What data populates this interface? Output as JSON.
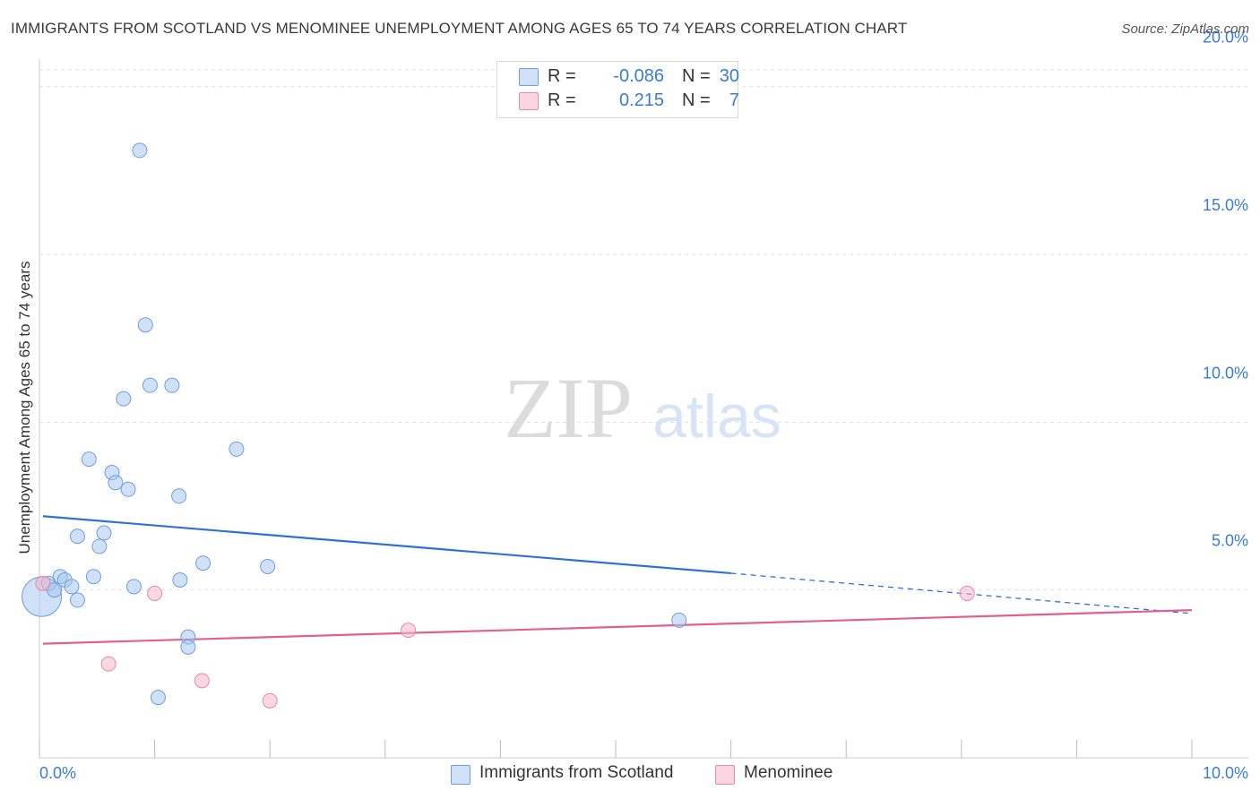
{
  "title": "IMMIGRANTS FROM SCOTLAND VS MENOMINEE UNEMPLOYMENT AMONG AGES 65 TO 74 YEARS CORRELATION CHART",
  "source": "Source: ZipAtlas.com",
  "watermark": {
    "zip": "ZIP",
    "atlas": "atlas"
  },
  "legend": [
    {
      "r_label": "R =",
      "r_value": "-0.086",
      "n_label": "N =",
      "n_value": "30",
      "color": "#a9c8f0"
    },
    {
      "r_label": "R =",
      "r_value": "0.215",
      "n_label": "N =",
      "n_value": "7",
      "color": "#f6b8cb"
    }
  ],
  "chart_data": {
    "type": "scatter",
    "title": "IMMIGRANTS FROM SCOTLAND VS MENOMINEE UNEMPLOYMENT AMONG AGES 65 TO 74 YEARS CORRELATION CHART",
    "xlabel": "",
    "ylabel": "Unemployment Among Ages 65 to 74 years",
    "xlim": [
      0,
      10
    ],
    "ylim": [
      0,
      20.5
    ],
    "x_tick_labels": [
      "0.0%",
      "10.0%"
    ],
    "y_ticks": [
      5,
      10,
      15,
      20
    ],
    "y_tick_labels": [
      "5.0%",
      "10.0%",
      "15.0%",
      "20.0%"
    ],
    "grid": true,
    "series": [
      {
        "name": "Immigrants from Scotland",
        "color": "#a9c8f0",
        "stroke": "#6a9fe0",
        "line_color": "#2f72d1",
        "points": [
          {
            "x": 0.02,
            "y": 4.8,
            "large": true
          },
          {
            "x": 0.08,
            "y": 5.2
          },
          {
            "x": 0.13,
            "y": 5.0
          },
          {
            "x": 0.18,
            "y": 5.4
          },
          {
            "x": 0.22,
            "y": 5.3
          },
          {
            "x": 0.28,
            "y": 5.1
          },
          {
            "x": 0.33,
            "y": 4.7
          },
          {
            "x": 0.47,
            "y": 5.4
          },
          {
            "x": 0.82,
            "y": 5.1
          },
          {
            "x": 1.22,
            "y": 5.3
          },
          {
            "x": 0.33,
            "y": 6.6
          },
          {
            "x": 0.52,
            "y": 6.3
          },
          {
            "x": 0.56,
            "y": 6.7
          },
          {
            "x": 1.42,
            "y": 5.8
          },
          {
            "x": 1.98,
            "y": 5.7
          },
          {
            "x": 0.43,
            "y": 8.9
          },
          {
            "x": 0.63,
            "y": 8.5
          },
          {
            "x": 0.66,
            "y": 8.2
          },
          {
            "x": 0.77,
            "y": 8.0
          },
          {
            "x": 1.21,
            "y": 7.8
          },
          {
            "x": 1.71,
            "y": 9.2
          },
          {
            "x": 0.73,
            "y": 10.7
          },
          {
            "x": 0.96,
            "y": 11.1
          },
          {
            "x": 1.15,
            "y": 11.1
          },
          {
            "x": 0.92,
            "y": 12.9
          },
          {
            "x": 0.87,
            "y": 18.1
          },
          {
            "x": 1.29,
            "y": 3.6
          },
          {
            "x": 1.29,
            "y": 3.3
          },
          {
            "x": 1.03,
            "y": 1.8
          },
          {
            "x": 5.55,
            "y": 4.1
          }
        ],
        "trend": {
          "x1": 0.03,
          "y1": 7.2,
          "x2": 6.0,
          "y2": 5.5,
          "dash_to_x": 10.0,
          "dash_to_y": 4.3
        }
      },
      {
        "name": "Menominee",
        "color": "#f6b8cb",
        "stroke": "#e58aa8",
        "line_color": "#e0608e",
        "points": [
          {
            "x": 0.03,
            "y": 5.2
          },
          {
            "x": 1.0,
            "y": 4.9
          },
          {
            "x": 0.6,
            "y": 2.8
          },
          {
            "x": 1.41,
            "y": 2.3
          },
          {
            "x": 2.0,
            "y": 1.7
          },
          {
            "x": 3.2,
            "y": 3.8
          },
          {
            "x": 8.05,
            "y": 4.9
          }
        ],
        "trend": {
          "x1": 0.03,
          "y1": 3.4,
          "x2": 10.0,
          "y2": 4.4
        }
      }
    ]
  }
}
